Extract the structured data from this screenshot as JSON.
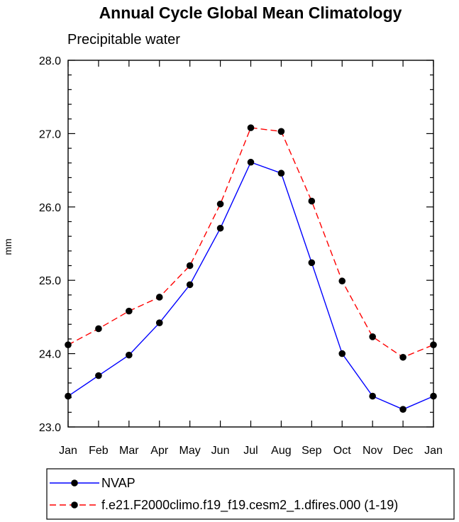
{
  "chart_data": {
    "type": "line",
    "title": "Annual Cycle Global Mean Climatology",
    "subtitle": "Precipitable water",
    "ylabel": "mm",
    "xlabel": "",
    "categories": [
      "Jan",
      "Feb",
      "Mar",
      "Apr",
      "May",
      "Jun",
      "Jul",
      "Aug",
      "Sep",
      "Oct",
      "Nov",
      "Dec",
      "Jan"
    ],
    "ylim": [
      23.0,
      28.0
    ],
    "yticks": [
      "23.0",
      "24.0",
      "25.0",
      "26.0",
      "27.0",
      "28.0"
    ],
    "grid": false,
    "legend_position": "bottom",
    "series": [
      {
        "name": "NVAP",
        "color": "#0000ff",
        "line_style": "solid",
        "marker": "filled-circle",
        "values": [
          23.42,
          23.7,
          23.98,
          24.42,
          24.94,
          25.71,
          26.61,
          26.46,
          25.24,
          24.0,
          23.42,
          23.24,
          23.42
        ]
      },
      {
        "name": "f.e21.F2000climo.f19_f19.cesm2_1.dfires.000 (1-19)",
        "color": "#ff0000",
        "line_style": "dashed",
        "marker": "filled-circle",
        "values": [
          24.12,
          24.34,
          24.58,
          24.77,
          25.2,
          26.04,
          27.08,
          27.03,
          26.08,
          24.99,
          24.23,
          23.95,
          24.12
        ]
      }
    ]
  }
}
